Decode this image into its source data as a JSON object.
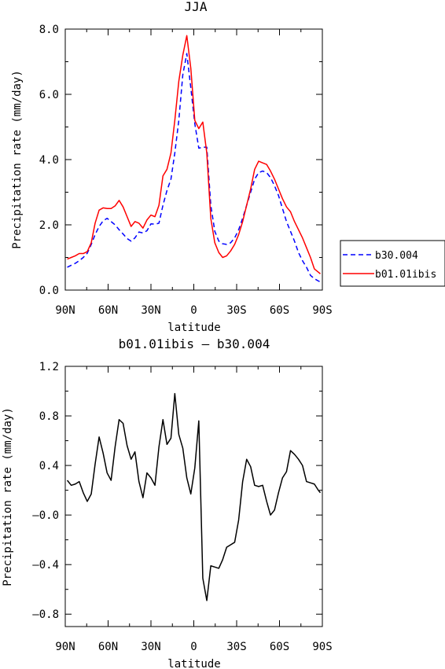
{
  "chart_data": [
    {
      "type": "line",
      "title": "JJA",
      "xlabel": "latitude",
      "ylabel": "Precipitation rate (mm/day)",
      "xticks": [
        "90N",
        "60N",
        "30N",
        "0",
        "30S",
        "60S",
        "90S"
      ],
      "yticks": [
        "0.0",
        "2.0",
        "4.0",
        "6.0",
        "8.0"
      ],
      "xlim": [
        -90,
        90
      ],
      "ylim": [
        0,
        8
      ],
      "legend_position": "right",
      "series": [
        {
          "name": "b30.004",
          "color": "#0000ff",
          "dash": "dashed",
          "x": [
            -88.6,
            -85.8,
            -83.0,
            -80.2,
            -77.4,
            -74.6,
            -71.8,
            -69.1,
            -66.3,
            -63.5,
            -60.7,
            -57.9,
            -55.1,
            -52.3,
            -49.5,
            -46.7,
            -43.9,
            -41.2,
            -38.4,
            -35.6,
            -32.8,
            -30.0,
            -27.2,
            -24.4,
            -21.6,
            -18.8,
            -16.0,
            -13.3,
            -10.5,
            -7.7,
            -4.9,
            -2.1,
            0.7,
            3.5,
            6.3,
            9.1,
            11.9,
            14.7,
            17.5,
            20.2,
            23.0,
            25.8,
            28.6,
            31.4,
            34.2,
            37.0,
            39.8,
            42.6,
            45.4,
            48.2,
            51.0,
            53.7,
            56.5,
            59.3,
            62.1,
            64.9,
            67.7,
            70.5,
            73.3,
            76.1,
            78.9,
            81.7,
            84.4,
            87.2,
            88.6
          ],
          "values": [
            0.7,
            0.76,
            0.82,
            0.9,
            1.0,
            1.13,
            1.4,
            1.7,
            1.95,
            2.12,
            2.2,
            2.1,
            2.0,
            1.85,
            1.72,
            1.58,
            1.5,
            1.6,
            1.78,
            1.75,
            1.82,
            2.03,
            2.02,
            2.05,
            2.6,
            3.05,
            3.4,
            4.2,
            5.2,
            6.6,
            7.25,
            6.2,
            5.1,
            4.35,
            4.38,
            4.38,
            2.6,
            1.8,
            1.5,
            1.42,
            1.4,
            1.45,
            1.6,
            1.85,
            2.2,
            2.6,
            3.0,
            3.4,
            3.6,
            3.65,
            3.6,
            3.45,
            3.2,
            2.9,
            2.5,
            2.1,
            1.8,
            1.5,
            1.15,
            0.9,
            0.7,
            0.45,
            0.35,
            0.28,
            0.25
          ]
        },
        {
          "name": "b01.01ibis",
          "color": "#ff0000",
          "dash": "solid",
          "x": [
            -88.6,
            -85.8,
            -83.0,
            -80.2,
            -77.4,
            -74.6,
            -71.8,
            -69.1,
            -66.3,
            -63.5,
            -60.7,
            -57.9,
            -55.1,
            -52.3,
            -49.5,
            -46.7,
            -43.9,
            -41.2,
            -38.4,
            -35.6,
            -32.8,
            -30.0,
            -27.2,
            -24.4,
            -21.6,
            -18.8,
            -16.0,
            -13.3,
            -10.5,
            -7.7,
            -4.9,
            -2.1,
            0.7,
            3.5,
            6.3,
            9.1,
            11.9,
            14.7,
            17.5,
            20.2,
            23.0,
            25.8,
            28.6,
            31.4,
            34.2,
            37.0,
            39.8,
            42.6,
            45.4,
            48.2,
            51.0,
            53.7,
            56.5,
            59.3,
            62.1,
            64.9,
            67.7,
            70.5,
            73.3,
            76.1,
            78.9,
            81.7,
            84.4,
            87.2,
            88.6
          ],
          "values": [
            0.95,
            1.0,
            1.05,
            1.12,
            1.12,
            1.18,
            1.45,
            2.05,
            2.45,
            2.52,
            2.5,
            2.5,
            2.58,
            2.75,
            2.55,
            2.25,
            1.95,
            2.1,
            2.05,
            1.9,
            2.15,
            2.3,
            2.25,
            2.6,
            3.5,
            3.7,
            4.2,
            5.2,
            6.4,
            7.2,
            7.8,
            6.8,
            5.2,
            4.95,
            5.15,
            4.2,
            2.2,
            1.45,
            1.15,
            1.0,
            1.05,
            1.2,
            1.4,
            1.7,
            2.1,
            2.6,
            3.1,
            3.7,
            3.95,
            3.9,
            3.85,
            3.65,
            3.4,
            3.1,
            2.8,
            2.55,
            2.4,
            2.1,
            1.85,
            1.6,
            1.3,
            1.0,
            0.65,
            0.55,
            0.5
          ]
        }
      ]
    },
    {
      "type": "line",
      "title": "b01.01ibis – b30.004",
      "xlabel": "latitude",
      "ylabel": "Precipitation rate (mm/day)",
      "xticks": [
        "90N",
        "60N",
        "30N",
        "0",
        "30S",
        "60S",
        "90S"
      ],
      "yticks": [
        "–0.8",
        "–0.4",
        "–0.0",
        "0.4",
        "0.8",
        "1.2"
      ],
      "xlim": [
        -90,
        90
      ],
      "ylim": [
        -0.9,
        1.2
      ],
      "series": [
        {
          "name": "",
          "color": "#000000",
          "dash": "solid",
          "x": [
            -88.6,
            -85.8,
            -83.0,
            -80.2,
            -77.4,
            -74.6,
            -71.8,
            -69.1,
            -66.3,
            -63.5,
            -60.7,
            -57.9,
            -55.1,
            -52.3,
            -49.5,
            -46.7,
            -43.9,
            -41.2,
            -38.4,
            -35.6,
            -32.8,
            -30.0,
            -27.2,
            -24.4,
            -21.6,
            -18.8,
            -16.0,
            -13.3,
            -10.5,
            -7.7,
            -4.9,
            -2.1,
            0.7,
            3.5,
            6.3,
            9.1,
            11.9,
            14.7,
            17.5,
            20.2,
            23.0,
            25.8,
            28.6,
            31.4,
            34.2,
            37.0,
            39.8,
            42.6,
            45.4,
            48.2,
            51.0,
            53.7,
            56.5,
            59.3,
            62.1,
            64.9,
            67.7,
            70.5,
            73.3,
            76.1,
            78.9,
            81.7,
            84.4,
            87.2,
            88.6
          ],
          "values": [
            0.28,
            0.24,
            0.25,
            0.27,
            0.18,
            0.11,
            0.17,
            0.41,
            0.63,
            0.5,
            0.34,
            0.28,
            0.55,
            0.77,
            0.74,
            0.56,
            0.45,
            0.51,
            0.27,
            0.14,
            0.34,
            0.3,
            0.24,
            0.55,
            0.77,
            0.57,
            0.62,
            0.98,
            0.65,
            0.54,
            0.3,
            0.17,
            0.38,
            0.76,
            -0.51,
            -0.69,
            -0.41,
            -0.42,
            -0.43,
            -0.36,
            -0.26,
            -0.24,
            -0.22,
            -0.04,
            0.27,
            0.45,
            0.39,
            0.24,
            0.23,
            0.24,
            0.11,
            0.0,
            0.04,
            0.18,
            0.3,
            0.35,
            0.52,
            0.49,
            0.45,
            0.4,
            0.27,
            0.26,
            0.25,
            0.2,
            0.18
          ]
        }
      ]
    }
  ]
}
